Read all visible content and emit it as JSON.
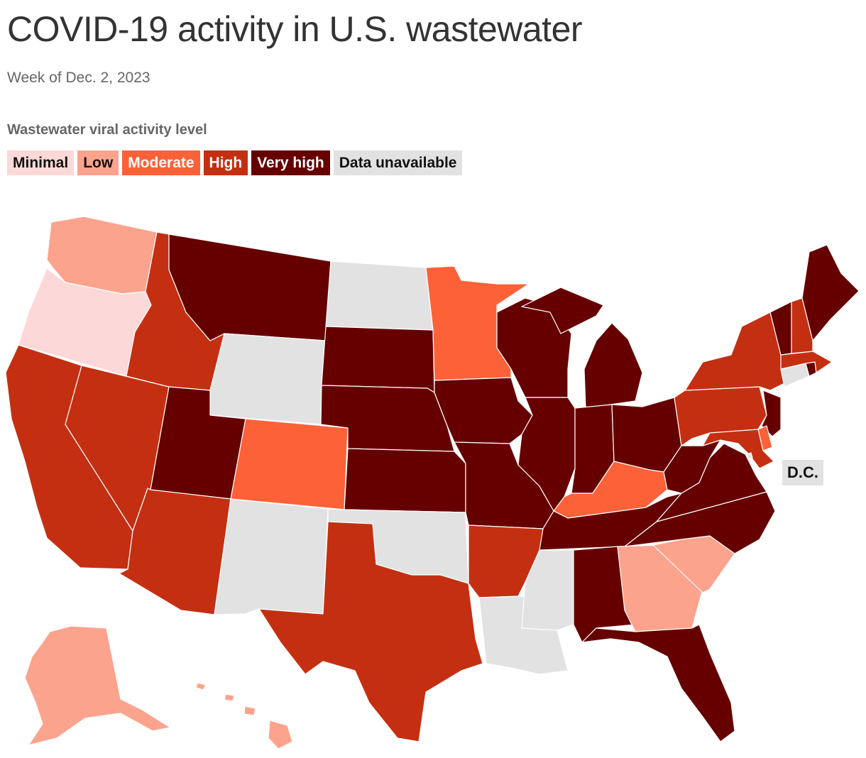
{
  "title": "COVID-19 activity in U.S. wastewater",
  "subtitle": "Week of Dec. 2, 2023",
  "legend": {
    "title": "Wastewater viral activity level",
    "items": [
      {
        "label": "Minimal",
        "color": "#fdd8d8",
        "text_color": "#111111"
      },
      {
        "label": "Low",
        "color": "#fca38d",
        "text_color": "#111111"
      },
      {
        "label": "Moderate",
        "color": "#fd6138",
        "text_color": "#ffffff"
      },
      {
        "label": "High",
        "color": "#c42f12",
        "text_color": "#ffffff"
      },
      {
        "label": "Very high",
        "color": "#660000",
        "text_color": "#ffffff"
      },
      {
        "label": "Data unavailable",
        "color": "#e2e2e2",
        "text_color": "#111111"
      }
    ]
  },
  "dc_label": "D.C.",
  "states": [
    {
      "id": "WA",
      "level": "Low"
    },
    {
      "id": "OR",
      "level": "Minimal"
    },
    {
      "id": "CA",
      "level": "High"
    },
    {
      "id": "NV",
      "level": "High"
    },
    {
      "id": "ID",
      "level": "High"
    },
    {
      "id": "MT",
      "level": "Very high"
    },
    {
      "id": "WY",
      "level": "Data unavailable"
    },
    {
      "id": "UT",
      "level": "Very high"
    },
    {
      "id": "AZ",
      "level": "High"
    },
    {
      "id": "CO",
      "level": "Moderate"
    },
    {
      "id": "NM",
      "level": "Data unavailable"
    },
    {
      "id": "ND",
      "level": "Data unavailable"
    },
    {
      "id": "SD",
      "level": "Very high"
    },
    {
      "id": "NE",
      "level": "Very high"
    },
    {
      "id": "KS",
      "level": "Very high"
    },
    {
      "id": "OK",
      "level": "Data unavailable"
    },
    {
      "id": "TX",
      "level": "High"
    },
    {
      "id": "MN",
      "level": "Moderate"
    },
    {
      "id": "IA",
      "level": "Very high"
    },
    {
      "id": "MO",
      "level": "Very high"
    },
    {
      "id": "AR",
      "level": "High"
    },
    {
      "id": "LA",
      "level": "Data unavailable"
    },
    {
      "id": "WI",
      "level": "Very high"
    },
    {
      "id": "IL",
      "level": "Very high"
    },
    {
      "id": "MI",
      "level": "Very high"
    },
    {
      "id": "IN",
      "level": "Very high"
    },
    {
      "id": "OH",
      "level": "Very high"
    },
    {
      "id": "KY",
      "level": "Moderate"
    },
    {
      "id": "TN",
      "level": "Very high"
    },
    {
      "id": "MS",
      "level": "Data unavailable"
    },
    {
      "id": "AL",
      "level": "Very high"
    },
    {
      "id": "GA",
      "level": "Low"
    },
    {
      "id": "FL",
      "level": "Very high"
    },
    {
      "id": "SC",
      "level": "Low"
    },
    {
      "id": "NC",
      "level": "Very high"
    },
    {
      "id": "VA",
      "level": "Very high"
    },
    {
      "id": "WV",
      "level": "Very high"
    },
    {
      "id": "PA",
      "level": "High"
    },
    {
      "id": "NY",
      "level": "High"
    },
    {
      "id": "NJ",
      "level": "Very high"
    },
    {
      "id": "DE",
      "level": "Moderate"
    },
    {
      "id": "MD",
      "level": "High"
    },
    {
      "id": "DC",
      "level": "Data unavailable"
    },
    {
      "id": "CT",
      "level": "Data unavailable"
    },
    {
      "id": "RI",
      "level": "Very high"
    },
    {
      "id": "MA",
      "level": "High"
    },
    {
      "id": "VT",
      "level": "Very high"
    },
    {
      "id": "NH",
      "level": "High"
    },
    {
      "id": "ME",
      "level": "Very high"
    },
    {
      "id": "AK",
      "level": "Low"
    },
    {
      "id": "HI",
      "level": "Low"
    }
  ]
}
